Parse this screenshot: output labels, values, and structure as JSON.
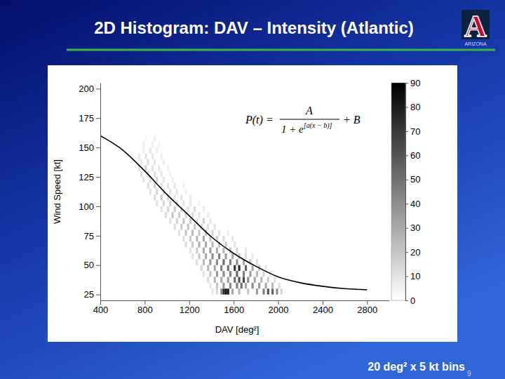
{
  "chart_data": {
    "type": "heatmap",
    "title": "2D Histogram: DAV – Intensity (Atlantic)",
    "xlabel": "DAV [deg²]",
    "ylabel": "Wind Speed [kt]",
    "xlim": [
      400,
      3000
    ],
    "ylim": [
      20,
      205
    ],
    "xticks": [
      400,
      800,
      1200,
      1600,
      2000,
      2400,
      2800
    ],
    "yticks": [
      25,
      50,
      75,
      100,
      125,
      150,
      175,
      200
    ],
    "bin_width": {
      "x": 20,
      "y": 5
    },
    "cells": [
      [
        1400,
        25,
        8
      ],
      [
        1440,
        25,
        15
      ],
      [
        1480,
        25,
        40
      ],
      [
        1500,
        25,
        75
      ],
      [
        1520,
        25,
        85
      ],
      [
        1540,
        25,
        80
      ],
      [
        1580,
        25,
        30
      ],
      [
        1640,
        25,
        25
      ],
      [
        1720,
        25,
        20
      ],
      [
        1800,
        25,
        35
      ],
      [
        1860,
        25,
        45
      ],
      [
        1900,
        25,
        60
      ],
      [
        1940,
        25,
        55
      ],
      [
        1980,
        25,
        40
      ],
      [
        2020,
        25,
        15
      ],
      [
        1380,
        30,
        10
      ],
      [
        1440,
        30,
        20
      ],
      [
        1500,
        30,
        35
      ],
      [
        1560,
        30,
        40
      ],
      [
        1620,
        30,
        45
      ],
      [
        1660,
        30,
        50
      ],
      [
        1700,
        30,
        30
      ],
      [
        1760,
        30,
        40
      ],
      [
        1820,
        30,
        35
      ],
      [
        1880,
        30,
        30
      ],
      [
        1940,
        30,
        25
      ],
      [
        2000,
        30,
        12
      ],
      [
        1360,
        35,
        12
      ],
      [
        1420,
        35,
        25
      ],
      [
        1480,
        35,
        30
      ],
      [
        1540,
        35,
        35
      ],
      [
        1600,
        35,
        50
      ],
      [
        1640,
        35,
        60
      ],
      [
        1680,
        35,
        65
      ],
      [
        1720,
        35,
        40
      ],
      [
        1780,
        35,
        30
      ],
      [
        1840,
        35,
        25
      ],
      [
        1900,
        35,
        18
      ],
      [
        1960,
        35,
        10
      ],
      [
        1320,
        40,
        10
      ],
      [
        1380,
        40,
        20
      ],
      [
        1440,
        40,
        35
      ],
      [
        1500,
        40,
        40
      ],
      [
        1560,
        40,
        45
      ],
      [
        1620,
        40,
        55
      ],
      [
        1680,
        40,
        45
      ],
      [
        1740,
        40,
        35
      ],
      [
        1800,
        40,
        25
      ],
      [
        1860,
        40,
        15
      ],
      [
        1920,
        40,
        10
      ],
      [
        1300,
        45,
        15
      ],
      [
        1360,
        45,
        25
      ],
      [
        1420,
        45,
        30
      ],
      [
        1480,
        45,
        45
      ],
      [
        1540,
        45,
        50
      ],
      [
        1600,
        45,
        70
      ],
      [
        1640,
        45,
        75
      ],
      [
        1700,
        45,
        55
      ],
      [
        1760,
        45,
        30
      ],
      [
        1820,
        45,
        20
      ],
      [
        1880,
        45,
        10
      ],
      [
        1260,
        50,
        12
      ],
      [
        1320,
        50,
        25
      ],
      [
        1380,
        50,
        35
      ],
      [
        1440,
        50,
        40
      ],
      [
        1500,
        50,
        50
      ],
      [
        1560,
        50,
        45
      ],
      [
        1620,
        50,
        40
      ],
      [
        1680,
        50,
        30
      ],
      [
        1740,
        50,
        20
      ],
      [
        1800,
        50,
        12
      ],
      [
        1220,
        55,
        10
      ],
      [
        1280,
        55,
        20
      ],
      [
        1340,
        55,
        30
      ],
      [
        1400,
        55,
        40
      ],
      [
        1460,
        55,
        45
      ],
      [
        1520,
        55,
        35
      ],
      [
        1580,
        55,
        30
      ],
      [
        1640,
        55,
        20
      ],
      [
        1700,
        55,
        12
      ],
      [
        1760,
        55,
        8
      ],
      [
        1200,
        60,
        10
      ],
      [
        1260,
        60,
        18
      ],
      [
        1320,
        60,
        30
      ],
      [
        1380,
        60,
        35
      ],
      [
        1440,
        60,
        30
      ],
      [
        1500,
        60,
        25
      ],
      [
        1560,
        60,
        20
      ],
      [
        1620,
        60,
        15
      ],
      [
        1700,
        60,
        8
      ],
      [
        1160,
        65,
        12
      ],
      [
        1220,
        65,
        20
      ],
      [
        1280,
        65,
        28
      ],
      [
        1340,
        65,
        30
      ],
      [
        1400,
        65,
        25
      ],
      [
        1460,
        65,
        22
      ],
      [
        1520,
        65,
        18
      ],
      [
        1600,
        65,
        10
      ],
      [
        1140,
        70,
        10
      ],
      [
        1200,
        70,
        18
      ],
      [
        1260,
        70,
        25
      ],
      [
        1320,
        70,
        30
      ],
      [
        1380,
        70,
        20
      ],
      [
        1440,
        70,
        18
      ],
      [
        1500,
        70,
        12
      ],
      [
        1580,
        70,
        8
      ],
      [
        1100,
        75,
        10
      ],
      [
        1160,
        75,
        20
      ],
      [
        1220,
        75,
        25
      ],
      [
        1280,
        75,
        20
      ],
      [
        1340,
        75,
        22
      ],
      [
        1400,
        75,
        15
      ],
      [
        1460,
        75,
        10
      ],
      [
        1540,
        75,
        6
      ],
      [
        1060,
        80,
        12
      ],
      [
        1120,
        80,
        18
      ],
      [
        1180,
        80,
        22
      ],
      [
        1240,
        80,
        18
      ],
      [
        1300,
        80,
        15
      ],
      [
        1360,
        80,
        12
      ],
      [
        1420,
        80,
        10
      ],
      [
        1020,
        85,
        10
      ],
      [
        1080,
        85,
        15
      ],
      [
        1140,
        85,
        20
      ],
      [
        1200,
        85,
        18
      ],
      [
        1260,
        85,
        12
      ],
      [
        1320,
        85,
        15
      ],
      [
        1380,
        85,
        8
      ],
      [
        980,
        90,
        12
      ],
      [
        1040,
        90,
        20
      ],
      [
        1100,
        90,
        18
      ],
      [
        1160,
        90,
        15
      ],
      [
        1220,
        90,
        12
      ],
      [
        1280,
        90,
        10
      ],
      [
        1360,
        90,
        6
      ],
      [
        940,
        95,
        10
      ],
      [
        1000,
        95,
        15
      ],
      [
        1060,
        95,
        18
      ],
      [
        1120,
        95,
        14
      ],
      [
        1180,
        95,
        10
      ],
      [
        1240,
        95,
        12
      ],
      [
        1320,
        95,
        6
      ],
      [
        900,
        100,
        10
      ],
      [
        960,
        100,
        14
      ],
      [
        1020,
        100,
        16
      ],
      [
        1080,
        100,
        12
      ],
      [
        1140,
        100,
        10
      ],
      [
        1200,
        100,
        8
      ],
      [
        1280,
        100,
        5
      ],
      [
        880,
        105,
        12
      ],
      [
        940,
        105,
        18
      ],
      [
        1000,
        105,
        14
      ],
      [
        1060,
        105,
        10
      ],
      [
        1120,
        105,
        8
      ],
      [
        1200,
        105,
        6
      ],
      [
        840,
        110,
        10
      ],
      [
        900,
        110,
        14
      ],
      [
        960,
        110,
        16
      ],
      [
        1020,
        110,
        10
      ],
      [
        1080,
        110,
        8
      ],
      [
        1160,
        110,
        5
      ],
      [
        820,
        115,
        12
      ],
      [
        880,
        115,
        15
      ],
      [
        940,
        115,
        12
      ],
      [
        1000,
        115,
        10
      ],
      [
        1060,
        115,
        8
      ],
      [
        1140,
        115,
        5
      ],
      [
        780,
        120,
        10
      ],
      [
        840,
        120,
        12
      ],
      [
        900,
        120,
        14
      ],
      [
        960,
        120,
        8
      ],
      [
        1040,
        120,
        6
      ],
      [
        760,
        125,
        12
      ],
      [
        820,
        125,
        14
      ],
      [
        880,
        125,
        10
      ],
      [
        940,
        125,
        8
      ],
      [
        1020,
        125,
        5
      ],
      [
        740,
        130,
        10
      ],
      [
        800,
        130,
        16
      ],
      [
        860,
        130,
        10
      ],
      [
        920,
        130,
        8
      ],
      [
        1000,
        130,
        5
      ],
      [
        760,
        135,
        8
      ],
      [
        820,
        135,
        12
      ],
      [
        880,
        135,
        8
      ],
      [
        960,
        135,
        6
      ],
      [
        740,
        140,
        8
      ],
      [
        800,
        140,
        10
      ],
      [
        860,
        140,
        8
      ],
      [
        940,
        140,
        5
      ],
      [
        780,
        145,
        6
      ],
      [
        840,
        145,
        8
      ],
      [
        900,
        145,
        6
      ],
      [
        780,
        150,
        5
      ],
      [
        860,
        150,
        6
      ],
      [
        920,
        150,
        4
      ],
      [
        800,
        155,
        4
      ],
      [
        880,
        155,
        5
      ]
    ],
    "colorbar": {
      "range": [
        0,
        90
      ],
      "ticks": [
        0,
        10,
        20,
        30,
        40,
        50,
        60,
        70,
        80,
        90
      ]
    },
    "curve": {
      "type": "line",
      "color": "#000000",
      "x": [
        400,
        600,
        800,
        1000,
        1200,
        1400,
        1600,
        1800,
        2000,
        2200,
        2400,
        2600,
        2800
      ],
      "values": [
        160,
        148,
        130,
        110,
        92,
        74,
        60,
        49,
        40,
        35,
        32,
        30,
        29
      ]
    },
    "formula": {
      "lhs": "P(t) =",
      "numerator": "A",
      "denominator": "1 + e",
      "exponent": "[a(x − b)]",
      "tail": "+ B"
    },
    "logo": {
      "letter": "A",
      "text": "ARIZONA"
    },
    "annotations": [
      "20 deg² x 5 kt bins",
      "9"
    ]
  }
}
